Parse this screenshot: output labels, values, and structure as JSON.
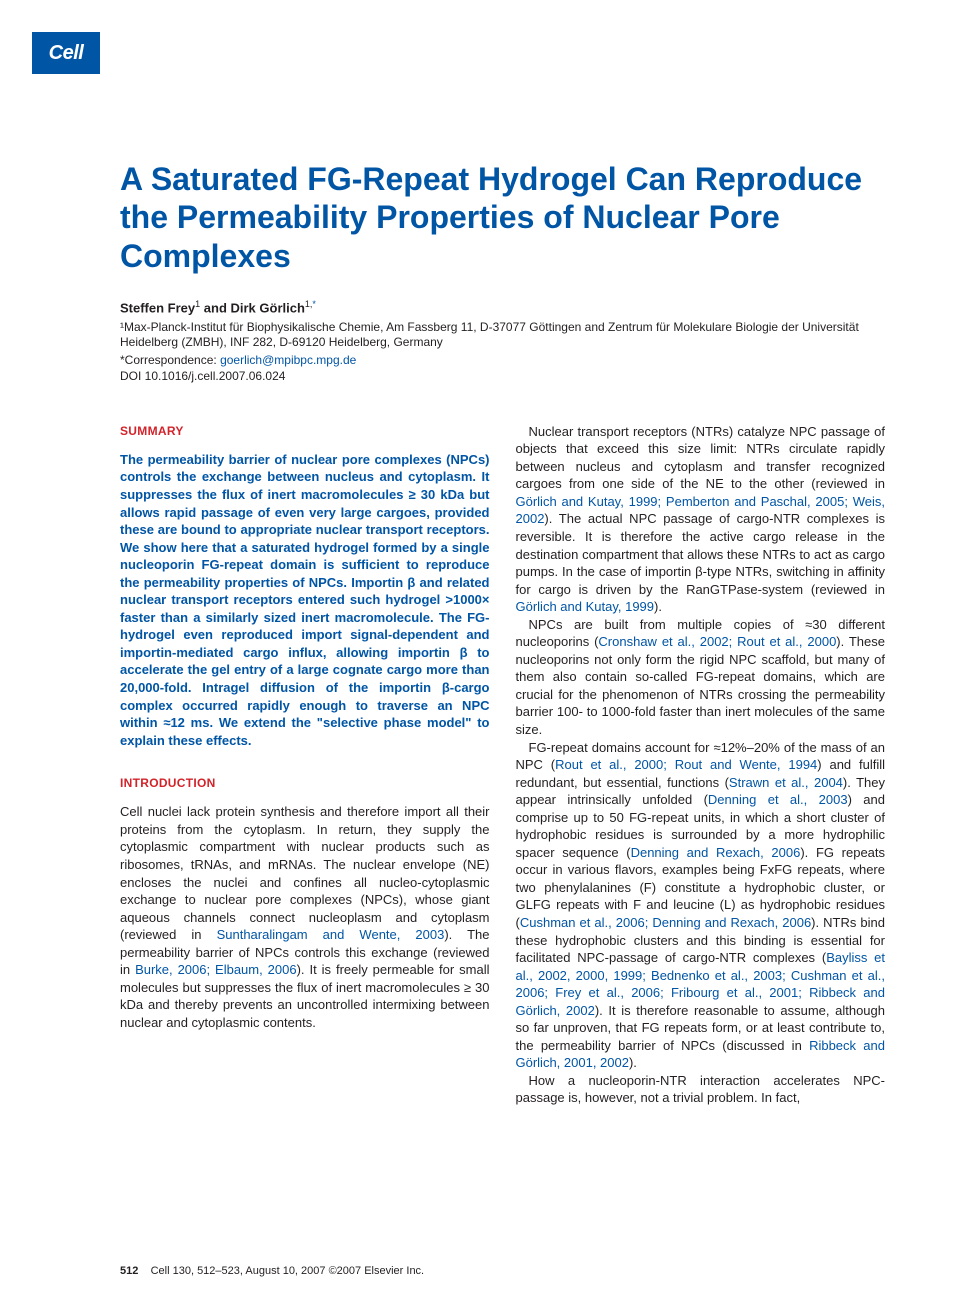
{
  "logo": "Cell",
  "title": "A Saturated FG-Repeat Hydrogel Can Reproduce the Permeability Properties of Nuclear Pore Complexes",
  "authors_html": "Steffen Frey<sup>1</sup> and Dirk Görlich<sup>1,*</sup>",
  "affiliation": "¹Max-Planck-Institut für Biophysikalische Chemie, Am Fassberg 11, D-37077 Göttingen and Zentrum für Molekulare Biologie der Universität Heidelberg (ZMBH), INF 282, D-69120 Heidelberg, Germany",
  "correspondence_label": "*Correspondence: ",
  "correspondence_email": "goerlich@mpibpc.mpg.de",
  "doi": "DOI 10.1016/j.cell.2007.06.024",
  "summary_heading": "SUMMARY",
  "summary_text": "The permeability barrier of nuclear pore complexes (NPCs) controls the exchange between nucleus and cytoplasm. It suppresses the flux of inert macromolecules ≥ 30 kDa but allows rapid passage of even very large cargoes, provided these are bound to appropriate nuclear transport receptors. We show here that a saturated hydrogel formed by a single nucleoporin FG-repeat domain is sufficient to reproduce the permeability properties of NPCs. Importin β and related nuclear transport receptors entered such hydrogel >1000× faster than a similarly sized inert macromolecule. The FG-hydrogel even reproduced import signal-dependent and importin-mediated cargo influx, allowing importin β to accelerate the gel entry of a large cognate cargo more than 20,000-fold. Intragel diffusion of the importin β-cargo complex occurred rapidly enough to traverse an NPC within ≈12 ms. We extend the \"selective phase model\" to explain these effects.",
  "intro_heading": "INTRODUCTION",
  "intro_p1": "Cell nuclei lack protein synthesis and therefore import all their proteins from the cytoplasm. In return, they supply the cytoplasmic compartment with nuclear products such as ribosomes, tRNAs, and mRNAs. The nuclear envelope (NE) encloses the nuclei and confines all nucleo-cytoplasmic exchange to nuclear pore complexes (NPCs), whose giant aqueous channels connect nucleoplasm and cytoplasm (reviewed in ",
  "intro_p1_ref1": "Suntharalingam and Wente, 2003",
  "intro_p1_mid": "). The permeability barrier of NPCs controls this exchange (reviewed in ",
  "intro_p1_ref2": "Burke, 2006; Elbaum, 2006",
  "intro_p1_end": "). It is freely permeable for small molecules but suppresses the flux of inert macromolecules ≥ 30 kDa and thereby prevents an uncontrolled intermixing between nuclear and cytoplasmic contents.",
  "col2_p1": "Nuclear transport receptors (NTRs) catalyze NPC passage of objects that exceed this size limit: NTRs circulate rapidly between nucleus and cytoplasm and transfer recognized cargoes from one side of the NE to the other (reviewed in ",
  "col2_p1_ref1": "Görlich and Kutay, 1999; Pemberton and Paschal, 2005; Weis, 2002",
  "col2_p1_mid": "). The actual NPC passage of cargo-NTR complexes is reversible. It is therefore the active cargo release in the destination compartment that allows these NTRs to act as cargo pumps. In the case of importin β-type NTRs, switching in affinity for cargo is driven by the RanGTPase-system (reviewed in ",
  "col2_p1_ref2": "Görlich and Kutay, 1999",
  "col2_p1_end": ").",
  "col2_p2": "NPCs are built from multiple copies of ≈30 different nucleoporins (",
  "col2_p2_ref1": "Cronshaw et al., 2002; Rout et al., 2000",
  "col2_p2_end": "). These nucleoporins not only form the rigid NPC scaffold, but many of them also contain so-called FG-repeat domains, which are crucial for the phenomenon of NTRs crossing the permeability barrier 100- to 1000-fold faster than inert molecules of the same size.",
  "col2_p3": "FG-repeat domains account for ≈12%–20% of the mass of an NPC (",
  "col2_p3_ref1": "Rout et al., 2000; Rout and Wente, 1994",
  "col2_p3_mid1": ") and fulfill redundant, but essential, functions (",
  "col2_p3_ref2": "Strawn et al., 2004",
  "col2_p3_mid2": "). They appear intrinsically unfolded (",
  "col2_p3_ref3": "Denning et al., 2003",
  "col2_p3_mid3": ") and comprise up to 50 FG-repeat units, in which a short cluster of hydrophobic residues is surrounded by a more hydrophilic spacer sequence (",
  "col2_p3_ref4": "Denning and Rexach, 2006",
  "col2_p3_mid4": "). FG repeats occur in various flavors, examples being FxFG repeats, where two phenylalanines (F) constitute a hydrophobic cluster, or GLFG repeats with F and leucine (L) as hydrophobic residues (",
  "col2_p3_ref5": "Cushman et al., 2006; Denning and Rexach, 2006",
  "col2_p3_mid5": "). NTRs bind these hydrophobic clusters and this binding is essential for facilitated NPC-passage of cargo-NTR complexes (",
  "col2_p3_ref6": "Bayliss et al., 2002, 2000, 1999; Bednenko et al., 2003; Cushman et al., 2006; Frey et al., 2006; Fribourg et al., 2001; Ribbeck and Görlich, 2002",
  "col2_p3_mid6": "). It is therefore reasonable to assume, although so far unproven, that FG repeats form, or at least contribute to, the permeability barrier of NPCs (discussed in ",
  "col2_p3_ref7": "Ribbeck and Görlich, 2001, 2002",
  "col2_p3_end": ").",
  "col2_p4": "How a nucleoporin-NTR interaction accelerates NPC-passage is, however, not a trivial problem. In fact,",
  "footer_page": "512",
  "footer_citation": "Cell 130, 512–523, August 10, 2007 ©2007 Elsevier Inc.",
  "colors": {
    "brand_blue": "#0055a5",
    "heading_red": "#d2232a",
    "text": "#231f20",
    "bg": "#ffffff"
  }
}
